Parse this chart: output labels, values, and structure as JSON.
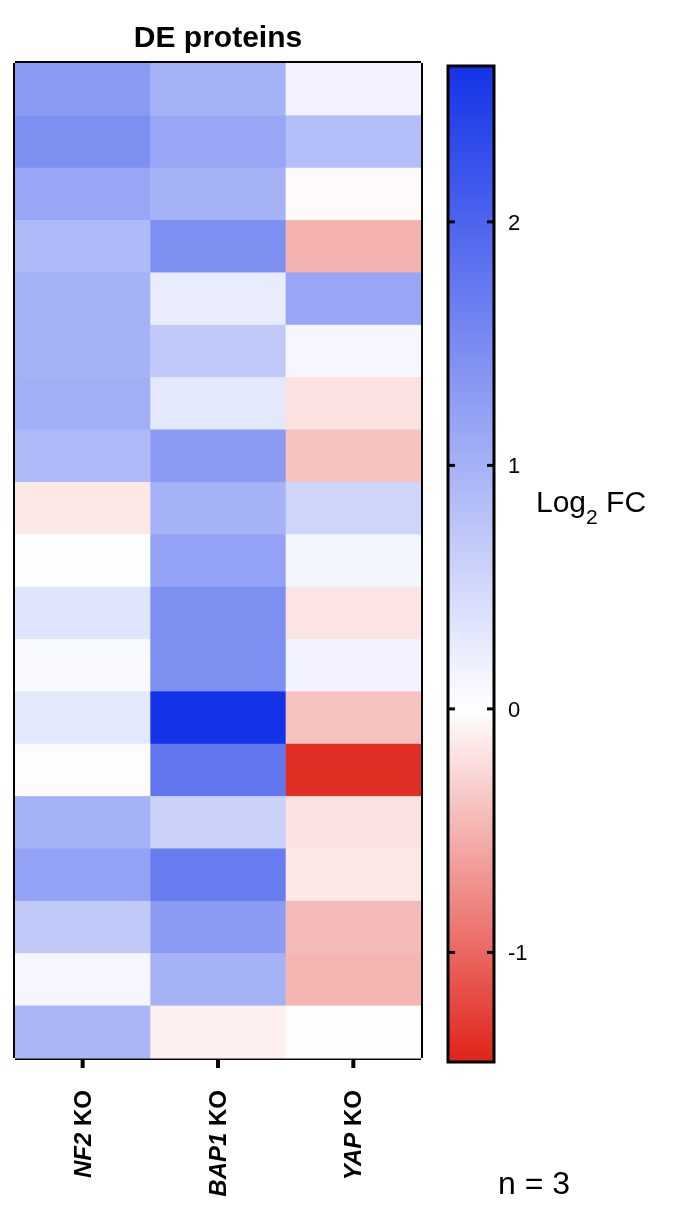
{
  "chart_data": {
    "type": "heatmap",
    "title": "DE proteins",
    "clabel": "Log$_{2}$ FC",
    "annotations": [
      "n = 3"
    ],
    "categories": [
      "NF2 KO",
      "BAP1 KO",
      "YAP KO"
    ],
    "y_categories": [
      null,
      null,
      null,
      null,
      null,
      null,
      null,
      null,
      null,
      null,
      null,
      null,
      null,
      null,
      null,
      null,
      null,
      null,
      null
    ],
    "cells": [
      [
        1.3,
        1.0,
        0.15
      ],
      [
        1.45,
        1.15,
        0.85
      ],
      [
        1.15,
        1.0,
        -0.03
      ],
      [
        0.9,
        1.45,
        -0.5
      ],
      [
        1.0,
        0.25,
        1.15
      ],
      [
        1.0,
        0.7,
        0.1
      ],
      [
        1.05,
        0.3,
        -0.2
      ],
      [
        0.9,
        1.3,
        -0.4
      ],
      [
        -0.15,
        1.0,
        0.55
      ],
      [
        0.03,
        1.2,
        0.12
      ],
      [
        0.35,
        1.45,
        -0.18
      ],
      [
        0.08,
        1.45,
        0.15
      ],
      [
        0.3,
        2.64,
        -0.4
      ],
      [
        0.02,
        1.75,
        -1.38
      ],
      [
        1.0,
        0.6,
        -0.2
      ],
      [
        1.2,
        1.7,
        -0.15
      ],
      [
        0.7,
        1.3,
        -0.45
      ],
      [
        0.1,
        1.0,
        -0.48
      ],
      [
        0.95,
        -0.1,
        0.01
      ]
    ],
    "clim": [
      -1.45,
      2.64
    ],
    "cticks": [
      -1,
      0,
      1,
      2
    ]
  }
}
